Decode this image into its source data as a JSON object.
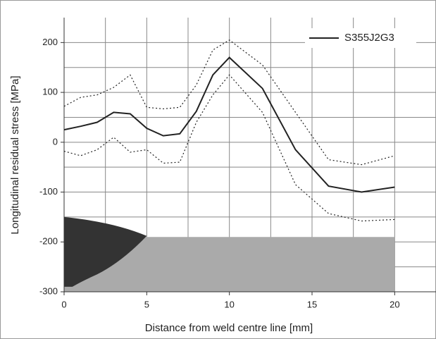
{
  "chart_data": {
    "type": "line",
    "x_label": "Distance from weld centre line [mm]",
    "y_label": "Longitudinal residual stress [MPa]",
    "x": [
      0,
      1,
      2,
      3,
      4,
      5,
      6,
      7,
      8,
      9,
      10,
      12,
      14,
      16,
      18,
      20
    ],
    "series": [
      {
        "name": "S355J2G3",
        "color": "#222222",
        "style": "solid",
        "values": [
          25,
          32,
          40,
          60,
          57,
          28,
          13,
          17,
          62,
          135,
          170,
          108,
          -15,
          -88,
          -100,
          -90
        ]
      },
      {
        "color": "#222222",
        "style": "dotted",
        "values": [
          72,
          90,
          95,
          110,
          135,
          70,
          67,
          70,
          115,
          185,
          205,
          155,
          60,
          -35,
          -45,
          -27
        ]
      },
      {
        "color": "#222222",
        "style": "dotted",
        "values": [
          -18,
          -27,
          -15,
          10,
          -20,
          -15,
          -42,
          -40,
          40,
          95,
          135,
          60,
          -85,
          -143,
          -158,
          -155
        ]
      }
    ],
    "xlim": [
      0,
      22.5
    ],
    "xticks": [
      0,
      5,
      10,
      15,
      20
    ],
    "ylim": [
      -300,
      250
    ],
    "yticks": [
      -300,
      -200,
      -100,
      0,
      100,
      200
    ],
    "grid": true,
    "minor_grid": 2,
    "legend": "top-right"
  }
}
